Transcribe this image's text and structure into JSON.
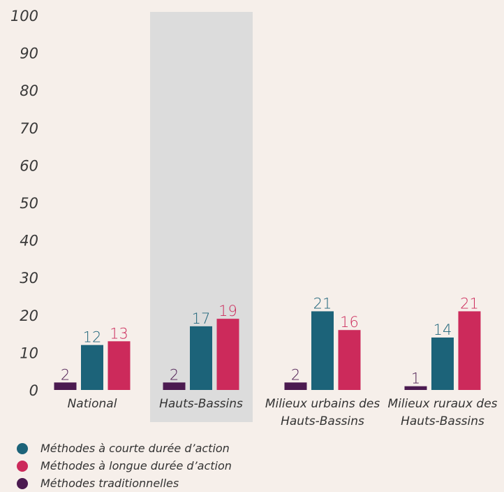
{
  "chart_data": {
    "type": "bar",
    "categories": [
      "National",
      "Hauts-Bassins",
      "Milieux urbains des Hauts-Bassins",
      "Milieux ruraux des Hauts-Bassins"
    ],
    "series": [
      {
        "name": "Méthodes traditionnelles",
        "color": "#4b1a50",
        "values": [
          2,
          2,
          2,
          1
        ]
      },
      {
        "name": "Méthodes à courte durée d’action",
        "color": "#1c6379",
        "values": [
          12,
          17,
          21,
          14
        ]
      },
      {
        "name": "Méthodes à longue durée d’action",
        "color": "#cc2a5b",
        "values": [
          13,
          19,
          16,
          21
        ]
      }
    ],
    "ylim": [
      0,
      100
    ],
    "yticks": [
      0,
      10,
      20,
      30,
      40,
      50,
      60,
      70,
      80,
      90,
      100
    ],
    "grid": false,
    "highlight_category": 1,
    "legend": "bottom-left"
  }
}
